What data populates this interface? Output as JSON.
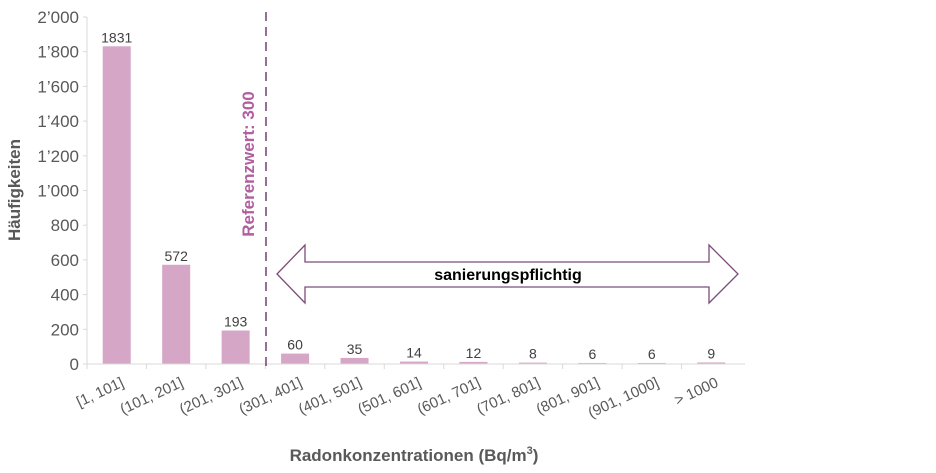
{
  "chart_data": {
    "type": "bar",
    "title": "",
    "xlabel": "Radonkonzentrationen (Bq/m",
    "xlabel_sup": "3",
    "xlabel_end": ")",
    "ylabel": "Häufigkeiten",
    "ylim": [
      0,
      2000
    ],
    "yticks": [
      0,
      200,
      400,
      600,
      800,
      1000,
      1200,
      1400,
      1600,
      1800,
      2000
    ],
    "ytick_labels": [
      "0",
      "200",
      "400",
      "600",
      "800",
      "1’000",
      "1’200",
      "1’400",
      "1’600",
      "1’800",
      "2’000"
    ],
    "categories": [
      "[1, 101]",
      "(101, 201]",
      "(201, 301]",
      "(301, 401]",
      "(401, 501]",
      "(501, 601]",
      "(601, 701]",
      "(701, 801]",
      "(801, 901]",
      "(901, 1000]",
      "> 1000"
    ],
    "values": [
      1831,
      572,
      193,
      60,
      35,
      14,
      12,
      8,
      6,
      6,
      9
    ],
    "bar_color": "#d5a6c6",
    "grid": false,
    "reference_line": {
      "label": "Referenzwert: 300",
      "color": "#b25ea0",
      "line_color": "#7b4d7a"
    },
    "annotation": {
      "label": "sanierungspflichtig",
      "color": "#7b4d7a"
    }
  }
}
